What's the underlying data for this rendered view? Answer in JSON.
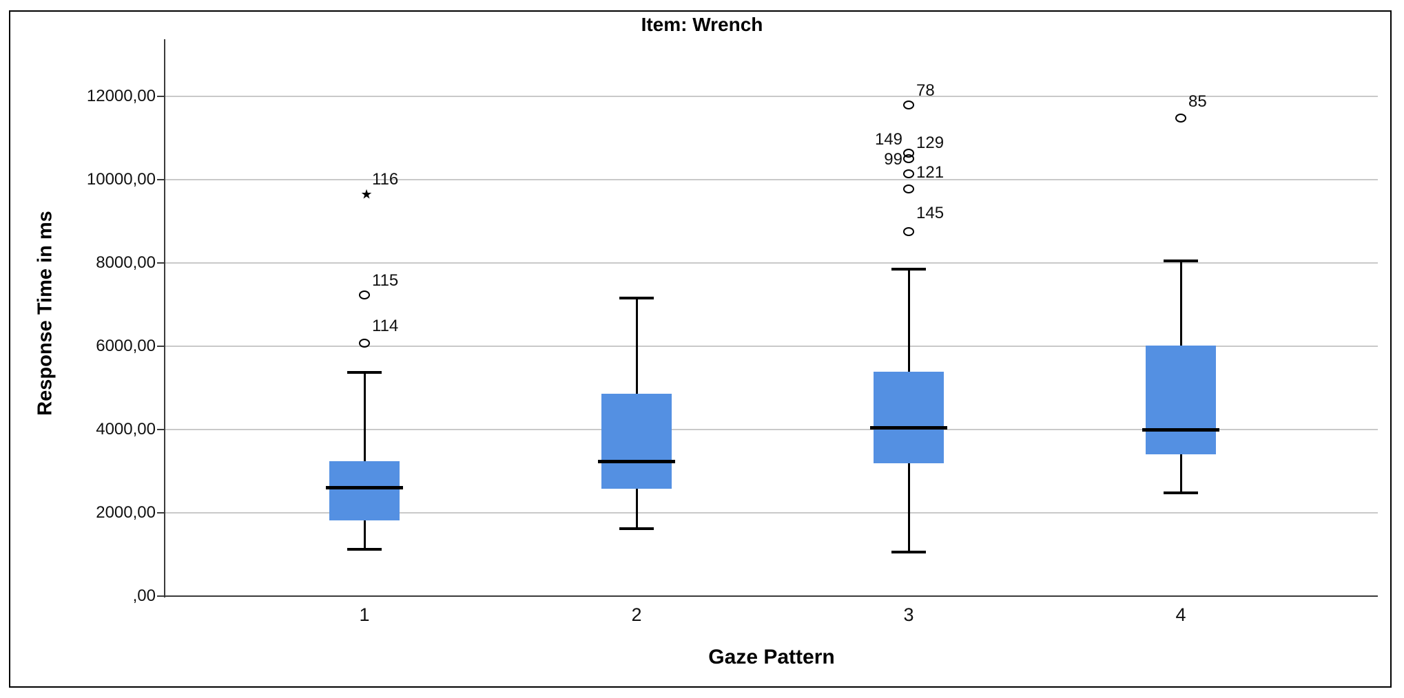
{
  "chart_data": {
    "type": "boxplot",
    "title": "Item: Wrench",
    "xlabel": "Gaze Pattern",
    "ylabel": "Response Time in ms",
    "categories": [
      "1",
      "2",
      "3",
      "4"
    ],
    "ylim": [
      0,
      13380
    ],
    "grid": "horizontal",
    "legend": "none",
    "decimal_style": "comma",
    "box_fill_color": "#5490E2",
    "axis_color": "#3a3a3a",
    "gridline_color": "#c9c9c9",
    "y_ticks": [
      {
        "value": 0,
        "label": ",00"
      },
      {
        "value": 2000,
        "label": "2000,00"
      },
      {
        "value": 4000,
        "label": "4000,00"
      },
      {
        "value": 6000,
        "label": "6000,00"
      },
      {
        "value": 8000,
        "label": "8000,00"
      },
      {
        "value": 10000,
        "label": "10000,00"
      },
      {
        "value": 12000,
        "label": "12000,00"
      }
    ],
    "series": [
      {
        "category": "1",
        "whisker_low": 1120,
        "q1": 1820,
        "median": 2600,
        "q3": 3240,
        "whisker_high": 5370,
        "outliers": [
          {
            "label": "114",
            "value": 6080,
            "marker": "circle",
            "label_side": "right",
            "label_dy": -24
          },
          {
            "label": "115",
            "value": 7240,
            "marker": "circle",
            "label_side": "right",
            "label_dy": -20
          },
          {
            "label": "116",
            "value": 9650,
            "marker": "star",
            "label_side": "right",
            "label_dy": -22
          }
        ]
      },
      {
        "category": "2",
        "whisker_low": 1620,
        "q1": 2580,
        "median": 3240,
        "q3": 4860,
        "whisker_high": 7160,
        "outliers": []
      },
      {
        "category": "3",
        "whisker_low": 1060,
        "q1": 3190,
        "median": 4050,
        "q3": 5390,
        "whisker_high": 7850,
        "outliers": [
          {
            "label": "145",
            "value": 8760,
            "marker": "circle",
            "label_side": "right",
            "label_dy": -26
          },
          {
            "label": "99",
            "value": 9790,
            "marker": "circle",
            "label_side": "left",
            "label_dy": -42
          },
          {
            "label": "121",
            "value": 10150,
            "marker": "circle",
            "label_side": "right",
            "label_dy": -1
          },
          {
            "label": "129",
            "value": 10510,
            "marker": "circle",
            "label_side": "right",
            "label_dy": -23
          },
          {
            "label": "149",
            "value": 10650,
            "marker": "circle",
            "label_side": "left",
            "label_dy": -19
          },
          {
            "label": "78",
            "value": 11800,
            "marker": "circle",
            "label_side": "right",
            "label_dy": -21
          }
        ]
      },
      {
        "category": "4",
        "whisker_low": 2480,
        "q1": 3410,
        "median": 3990,
        "q3": 6020,
        "whisker_high": 8050,
        "outliers": [
          {
            "label": "85",
            "value": 11490,
            "marker": "circle",
            "label_side": "right",
            "label_dy": -23
          }
        ]
      }
    ]
  }
}
